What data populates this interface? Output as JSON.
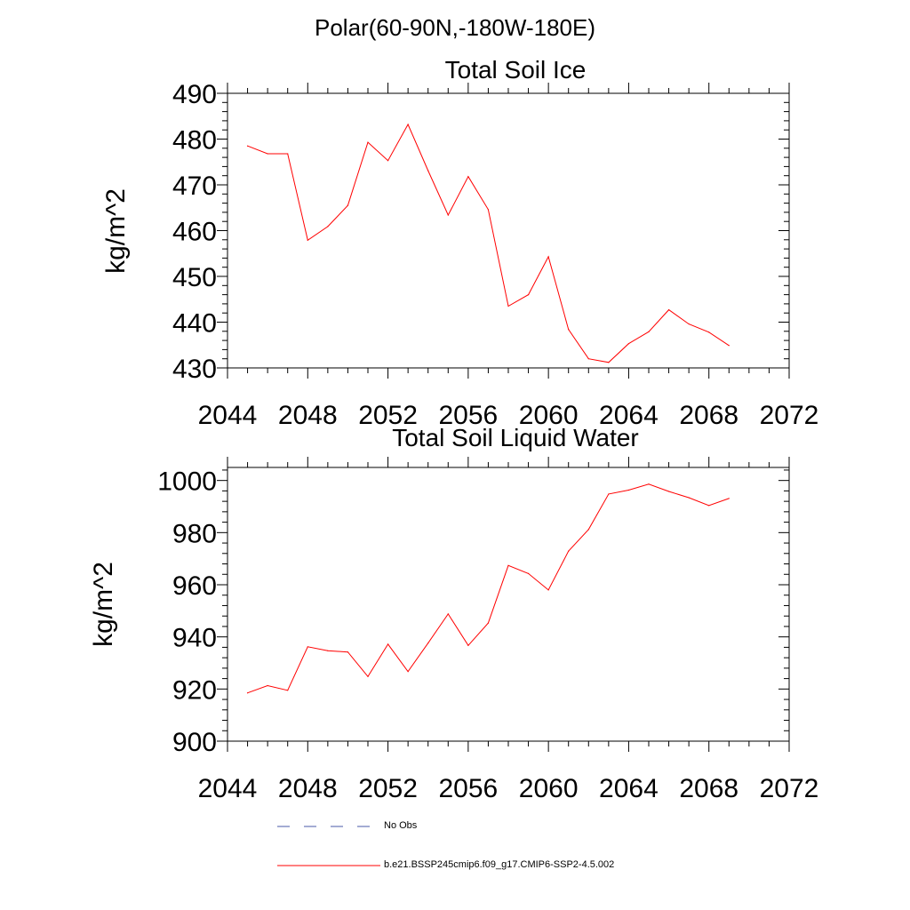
{
  "suptitle": "Polar(60-90N,-180W-180E)",
  "colors": {
    "model": "#ff0000",
    "obs": "#4a5aa8",
    "axis": "#000000"
  },
  "legend": {
    "obs_label": "No Obs",
    "model_label": "b.e21.BSSP245cmip6.f09_g17.CMIP6-SSP2-4.5.002"
  },
  "chart_data": [
    {
      "type": "line",
      "title": "Total Soil Ice",
      "xlabel": "",
      "ylabel": "kg/m^2",
      "xlim": [
        2044,
        2072
      ],
      "ylim": [
        430,
        490
      ],
      "xticks": [
        2044,
        2048,
        2052,
        2056,
        2060,
        2064,
        2068,
        2072
      ],
      "xtick_labels": [
        "2044",
        "2048",
        "2052",
        "2056",
        "2060",
        "2064",
        "2068",
        "2072"
      ],
      "yticks": [
        430,
        440,
        450,
        460,
        470,
        480,
        490
      ],
      "ytick_labels": [
        "430",
        "440",
        "450",
        "460",
        "470",
        "480",
        "490"
      ],
      "x": [
        2045,
        2046,
        2047,
        2048,
        2049,
        2050,
        2051,
        2052,
        2053,
        2054,
        2055,
        2056,
        2057,
        2058,
        2059,
        2060,
        2061,
        2062,
        2063,
        2064,
        2065,
        2066,
        2067,
        2068,
        2069
      ],
      "series": [
        {
          "name": "b.e21.BSSP245cmip6.f09_g17.CMIP6-SSP2-4.5.002",
          "values": [
            478.5,
            476.8,
            476.8,
            457.9,
            460.9,
            465.5,
            479.3,
            475.3,
            483.2,
            473.1,
            463.4,
            471.8,
            464.6,
            443.5,
            446.0,
            454.3,
            438.4,
            432.0,
            431.2,
            435.3,
            437.9,
            442.7,
            439.6,
            437.8,
            434.9
          ]
        }
      ]
    },
    {
      "type": "line",
      "title": "Total Soil Liquid Water",
      "xlabel": "",
      "ylabel": "kg/m^2",
      "xlim": [
        2044,
        2072
      ],
      "ylim": [
        900,
        1005
      ],
      "xticks": [
        2044,
        2048,
        2052,
        2056,
        2060,
        2064,
        2068,
        2072
      ],
      "xtick_labels": [
        "2044",
        "2048",
        "2052",
        "2056",
        "2060",
        "2064",
        "2068",
        "2072"
      ],
      "yticks": [
        900,
        920,
        940,
        960,
        980,
        1000
      ],
      "ytick_labels": [
        "900",
        "920",
        "940",
        "960",
        "980",
        "1000"
      ],
      "x": [
        2045,
        2046,
        2047,
        2048,
        2049,
        2050,
        2051,
        2052,
        2053,
        2054,
        2055,
        2056,
        2057,
        2058,
        2059,
        2060,
        2061,
        2062,
        2063,
        2064,
        2065,
        2066,
        2067,
        2068,
        2069
      ],
      "series": [
        {
          "name": "b.e21.BSSP245cmip6.f09_g17.CMIP6-SSP2-4.5.002",
          "values": [
            918.5,
            921.3,
            919.5,
            936.2,
            934.7,
            934.2,
            924.8,
            937.2,
            926.7,
            937.6,
            948.8,
            936.7,
            945.3,
            967.4,
            964.3,
            958.0,
            972.9,
            981.2,
            994.8,
            996.3,
            998.6,
            995.8,
            993.4,
            990.4,
            993.1
          ]
        }
      ]
    }
  ]
}
